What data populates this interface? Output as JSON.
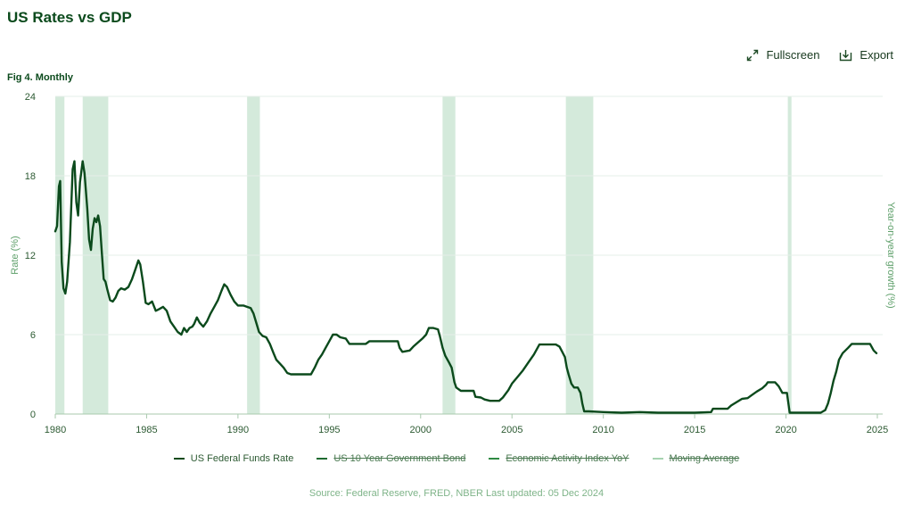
{
  "header": {
    "title": "US Rates vs GDP"
  },
  "toolbar": {
    "fullscreen_label": "Fullscreen",
    "export_label": "Export"
  },
  "figure": {
    "label": "Fig 4. Monthly"
  },
  "footer": {
    "source": "Source: Federal Reserve, FRED, NBER Last updated: 05 Dec 2024"
  },
  "colors": {
    "primary": "#0b4a1c",
    "recession": "#d4eadb",
    "grid": "#e6efe8",
    "muted": "#4b7a52"
  },
  "icons": {
    "fullscreen": "expand-arrows-icon",
    "export": "download-box-icon"
  },
  "chart_data": {
    "type": "line",
    "ylabel": "Rate (%)",
    "y2label": "Year-on-year growth (%)",
    "xlim": [
      1980,
      2025
    ],
    "ylim": [
      0,
      24
    ],
    "x_ticks": [
      "1980",
      "1985",
      "1990",
      "1995",
      "2000",
      "2005",
      "2010",
      "2015",
      "2020",
      "2025"
    ],
    "y_ticks": [
      "0",
      "6",
      "12",
      "18",
      "24"
    ],
    "grid": true,
    "legend_position": "bottom",
    "recessions": [
      [
        1980.0,
        1980.5
      ],
      [
        1981.5,
        1982.9
      ],
      [
        1990.5,
        1991.2
      ],
      [
        2001.2,
        2001.9
      ],
      [
        2007.95,
        2009.45
      ],
      [
        2020.1,
        2020.3
      ]
    ],
    "series": [
      {
        "name": "US Federal Funds Rate",
        "visible": true,
        "color": "#0b4a1c",
        "points": [
          [
            1980.0,
            13.8
          ],
          [
            1980.1,
            14.2
          ],
          [
            1980.2,
            17.2
          ],
          [
            1980.27,
            17.6
          ],
          [
            1980.35,
            11.5
          ],
          [
            1980.45,
            9.5
          ],
          [
            1980.55,
            9.1
          ],
          [
            1980.65,
            10.0
          ],
          [
            1980.8,
            13.0
          ],
          [
            1980.95,
            18.5
          ],
          [
            1981.05,
            19.1
          ],
          [
            1981.15,
            16.0
          ],
          [
            1981.25,
            15.0
          ],
          [
            1981.35,
            17.5
          ],
          [
            1981.5,
            19.1
          ],
          [
            1981.6,
            18.2
          ],
          [
            1981.75,
            15.5
          ],
          [
            1981.85,
            13.2
          ],
          [
            1981.95,
            12.4
          ],
          [
            1982.05,
            14.0
          ],
          [
            1982.15,
            14.8
          ],
          [
            1982.25,
            14.5
          ],
          [
            1982.35,
            15.0
          ],
          [
            1982.45,
            14.2
          ],
          [
            1982.55,
            12.2
          ],
          [
            1982.65,
            10.2
          ],
          [
            1982.75,
            10.0
          ],
          [
            1982.85,
            9.4
          ],
          [
            1983.0,
            8.6
          ],
          [
            1983.15,
            8.5
          ],
          [
            1983.3,
            8.8
          ],
          [
            1983.45,
            9.3
          ],
          [
            1983.6,
            9.5
          ],
          [
            1983.8,
            9.4
          ],
          [
            1984.0,
            9.6
          ],
          [
            1984.2,
            10.2
          ],
          [
            1984.4,
            11.0
          ],
          [
            1984.55,
            11.6
          ],
          [
            1984.65,
            11.3
          ],
          [
            1984.8,
            10.0
          ],
          [
            1984.95,
            8.4
          ],
          [
            1985.1,
            8.3
          ],
          [
            1985.3,
            8.5
          ],
          [
            1985.5,
            7.8
          ],
          [
            1985.65,
            7.9
          ],
          [
            1985.9,
            8.1
          ],
          [
            1986.1,
            7.8
          ],
          [
            1986.3,
            7.0
          ],
          [
            1986.5,
            6.6
          ],
          [
            1986.7,
            6.2
          ],
          [
            1986.9,
            6.0
          ],
          [
            1987.05,
            6.5
          ],
          [
            1987.2,
            6.2
          ],
          [
            1987.35,
            6.5
          ],
          [
            1987.5,
            6.6
          ],
          [
            1987.6,
            6.8
          ],
          [
            1987.75,
            7.3
          ],
          [
            1987.9,
            6.9
          ],
          [
            1988.1,
            6.6
          ],
          [
            1988.3,
            7.0
          ],
          [
            1988.5,
            7.6
          ],
          [
            1988.7,
            8.1
          ],
          [
            1988.9,
            8.6
          ],
          [
            1989.1,
            9.3
          ],
          [
            1989.25,
            9.8
          ],
          [
            1989.4,
            9.6
          ],
          [
            1989.6,
            9.0
          ],
          [
            1989.8,
            8.5
          ],
          [
            1990.0,
            8.2
          ],
          [
            1990.3,
            8.2
          ],
          [
            1990.5,
            8.1
          ],
          [
            1990.7,
            8.0
          ],
          [
            1990.85,
            7.6
          ],
          [
            1991.0,
            6.9
          ],
          [
            1991.15,
            6.2
          ],
          [
            1991.35,
            5.9
          ],
          [
            1991.55,
            5.8
          ],
          [
            1991.75,
            5.3
          ],
          [
            1991.95,
            4.6
          ],
          [
            1992.1,
            4.1
          ],
          [
            1992.3,
            3.8
          ],
          [
            1992.5,
            3.5
          ],
          [
            1992.7,
            3.1
          ],
          [
            1992.9,
            3.0
          ],
          [
            1993.2,
            3.0
          ],
          [
            1993.5,
            3.0
          ],
          [
            1993.8,
            3.0
          ],
          [
            1994.0,
            3.0
          ],
          [
            1994.2,
            3.5
          ],
          [
            1994.4,
            4.1
          ],
          [
            1994.6,
            4.5
          ],
          [
            1994.8,
            5.0
          ],
          [
            1995.0,
            5.5
          ],
          [
            1995.2,
            6.0
          ],
          [
            1995.4,
            6.0
          ],
          [
            1995.6,
            5.8
          ],
          [
            1995.9,
            5.7
          ],
          [
            1996.1,
            5.3
          ],
          [
            1996.4,
            5.3
          ],
          [
            1996.7,
            5.3
          ],
          [
            1997.0,
            5.3
          ],
          [
            1997.2,
            5.5
          ],
          [
            1997.6,
            5.5
          ],
          [
            1998.0,
            5.5
          ],
          [
            1998.4,
            5.5
          ],
          [
            1998.75,
            5.5
          ],
          [
            1998.85,
            5.0
          ],
          [
            1999.0,
            4.7
          ],
          [
            1999.4,
            4.8
          ],
          [
            1999.6,
            5.1
          ],
          [
            1999.85,
            5.4
          ],
          [
            2000.1,
            5.7
          ],
          [
            2000.3,
            6.0
          ],
          [
            2000.45,
            6.5
          ],
          [
            2000.7,
            6.5
          ],
          [
            2000.95,
            6.4
          ],
          [
            2001.05,
            5.9
          ],
          [
            2001.2,
            5.0
          ],
          [
            2001.35,
            4.4
          ],
          [
            2001.55,
            3.9
          ],
          [
            2001.7,
            3.5
          ],
          [
            2001.85,
            2.4
          ],
          [
            2001.95,
            2.0
          ],
          [
            2002.2,
            1.75
          ],
          [
            2002.6,
            1.75
          ],
          [
            2002.9,
            1.75
          ],
          [
            2003.0,
            1.3
          ],
          [
            2003.3,
            1.25
          ],
          [
            2003.5,
            1.1
          ],
          [
            2003.8,
            1.0
          ],
          [
            2004.0,
            1.0
          ],
          [
            2004.3,
            1.0
          ],
          [
            2004.5,
            1.25
          ],
          [
            2004.8,
            1.8
          ],
          [
            2005.0,
            2.3
          ],
          [
            2005.3,
            2.8
          ],
          [
            2005.6,
            3.3
          ],
          [
            2005.9,
            3.9
          ],
          [
            2006.2,
            4.5
          ],
          [
            2006.5,
            5.25
          ],
          [
            2006.8,
            5.25
          ],
          [
            2007.1,
            5.25
          ],
          [
            2007.4,
            5.25
          ],
          [
            2007.6,
            5.1
          ],
          [
            2007.75,
            4.7
          ],
          [
            2007.9,
            4.3
          ],
          [
            2008.0,
            3.5
          ],
          [
            2008.1,
            3.0
          ],
          [
            2008.25,
            2.3
          ],
          [
            2008.4,
            2.0
          ],
          [
            2008.6,
            2.0
          ],
          [
            2008.75,
            1.6
          ],
          [
            2008.85,
            0.8
          ],
          [
            2008.95,
            0.2
          ],
          [
            2009.2,
            0.2
          ],
          [
            2010.0,
            0.15
          ],
          [
            2011.0,
            0.1
          ],
          [
            2012.0,
            0.15
          ],
          [
            2013.0,
            0.1
          ],
          [
            2014.0,
            0.1
          ],
          [
            2015.0,
            0.1
          ],
          [
            2015.9,
            0.15
          ],
          [
            2016.0,
            0.4
          ],
          [
            2016.8,
            0.4
          ],
          [
            2017.0,
            0.65
          ],
          [
            2017.3,
            0.9
          ],
          [
            2017.6,
            1.15
          ],
          [
            2017.9,
            1.2
          ],
          [
            2018.1,
            1.4
          ],
          [
            2018.4,
            1.7
          ],
          [
            2018.7,
            1.95
          ],
          [
            2018.9,
            2.2
          ],
          [
            2019.0,
            2.4
          ],
          [
            2019.4,
            2.4
          ],
          [
            2019.6,
            2.1
          ],
          [
            2019.8,
            1.6
          ],
          [
            2020.05,
            1.6
          ],
          [
            2020.2,
            0.1
          ],
          [
            2021.0,
            0.1
          ],
          [
            2021.9,
            0.1
          ],
          [
            2022.15,
            0.3
          ],
          [
            2022.3,
            0.8
          ],
          [
            2022.45,
            1.6
          ],
          [
            2022.6,
            2.5
          ],
          [
            2022.75,
            3.2
          ],
          [
            2022.9,
            4.1
          ],
          [
            2023.1,
            4.6
          ],
          [
            2023.4,
            5.0
          ],
          [
            2023.6,
            5.3
          ],
          [
            2024.6,
            5.3
          ],
          [
            2024.8,
            4.8
          ],
          [
            2024.95,
            4.6
          ]
        ]
      },
      {
        "name": "US 10 Year Government Bond",
        "visible": false,
        "color": "#1e6b30"
      },
      {
        "name": "Economic Activity Index YoY",
        "visible": false,
        "color": "#2f8a42"
      },
      {
        "name": "Moving Average",
        "visible": false,
        "color": "#a6d3b0"
      }
    ]
  }
}
